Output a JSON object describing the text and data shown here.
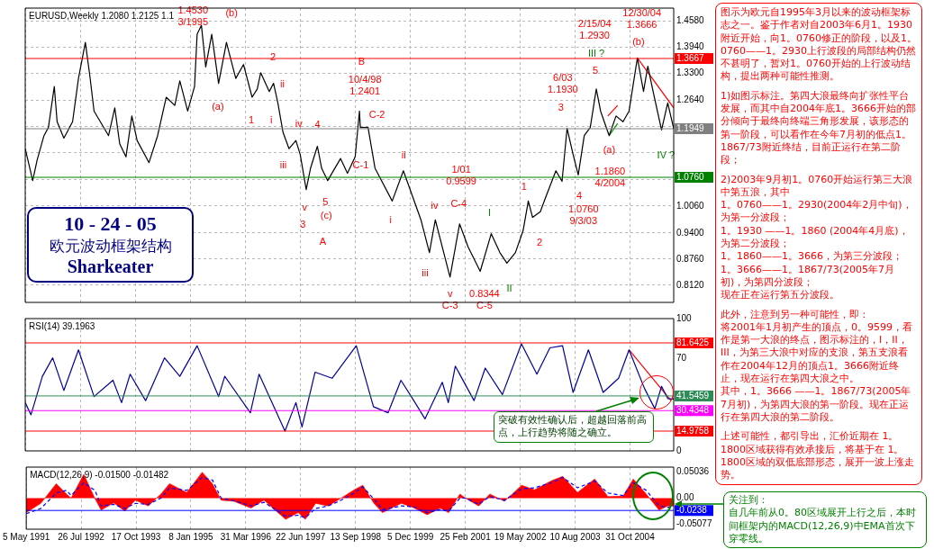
{
  "chart_data": [
    {
      "type": "line",
      "title": "EURUSD,Weekly 1.2080 1.2125 1.1",
      "xlim": [
        "1991-05-05",
        "2005-10-23"
      ],
      "ylim": [
        0.77,
        1.49
      ],
      "grid": true,
      "marker": "none",
      "tick_labels": "y",
      "xticks": [
        {
          "value": "1991-05-05",
          "label": null
        },
        {
          "value": "1992-07-26",
          "label": null
        },
        {
          "value": "1993-10-17",
          "label": null
        },
        {
          "value": "1995-01-08",
          "label": null
        },
        {
          "value": "1996-03-31",
          "label": null
        },
        {
          "value": "1997-06-22",
          "label": null
        },
        {
          "value": "1998-09-13",
          "label": null
        },
        {
          "value": "1999-12-05",
          "label": null
        },
        {
          "value": "2001-02-25",
          "label": null
        },
        {
          "value": "2002-05-19",
          "label": null
        },
        {
          "value": "2003-08-10",
          "label": null
        },
        {
          "value": "2004-10-31",
          "label": null
        }
      ],
      "yticks": [
        {
          "value": 1.458,
          "label": "1.4580"
        },
        {
          "value": 1.394,
          "label": "1.3940"
        },
        {
          "value": 1.33,
          "label": "1.3300"
        },
        {
          "value": 1.264,
          "label": "1.2640"
        },
        {
          "value": 1.2,
          "label": null
        },
        {
          "value": 1.136,
          "label": null
        },
        {
          "value": 1.07,
          "label": null
        },
        {
          "value": 1.006,
          "label": "1.0060"
        },
        {
          "value": 0.94,
          "label": "0.9400"
        },
        {
          "value": 0.876,
          "label": "0.8760"
        },
        {
          "value": 0.812,
          "label": "0.8120"
        }
      ],
      "series": [
        {
          "color": "#000000",
          "x": [
            "1991-05-05",
            "1991-07-05",
            "1991-08-10",
            "1991-10-05",
            "1991-11-10",
            "1991-12-28",
            "1992-01-20",
            "1992-03-15",
            "1992-05-25",
            "1992-07-12",
            "1992-09-06",
            "1992-10-12",
            "1992-11-16",
            "1993-01-18",
            "1993-03-14",
            "1993-05-04",
            "1993-06-13",
            "1993-08-03",
            "1993-09-20",
            "1993-11-02",
            "1994-02-07",
            "1994-04-18",
            "1994-06-27",
            "1994-09-05",
            "1994-10-16",
            "1994-12-19",
            "1995-02-13",
            "1995-03-06",
            "1995-04-10",
            "1995-05-15",
            "1995-07-03",
            "1995-08-28",
            "1995-10-31",
            "1996-01-15",
            "1996-03-18",
            "1996-05-27",
            "1996-07-08",
            "1996-08-05",
            "1996-10-14",
            "1996-11-18",
            "1996-12-23",
            "1997-02-03",
            "1997-03-24",
            "1997-05-19",
            "1997-06-23",
            "1997-08-11",
            "1997-09-15",
            "1997-11-10",
            "1997-12-15",
            "1998-02-02",
            "1998-05-18",
            "1998-07-13",
            "1998-09-14",
            "1998-10-19",
            "1998-10-26",
            "1998-12-28",
            "1999-02-23",
            "1999-07-13",
            "1999-10-12",
            "2000-03-03",
            "2000-05-11",
            "2000-06-28",
            "2000-10-26",
            "2001-01-12",
            "2001-03-22",
            "2001-06-29",
            "2001-09-27",
            "2001-12-06",
            "2002-02-02",
            "2002-04-12",
            "2002-06-14",
            "2002-07-26",
            "2002-08-30",
            "2002-11-01",
            "2002-12-13",
            "2003-03-08",
            "2003-04-27",
            "2003-06-07",
            "2003-07-26",
            "2003-09-06",
            "2003-10-25",
            "2003-12-13",
            "2004-01-31",
            "2004-03-06",
            "2004-05-15",
            "2004-07-10",
            "2004-09-05",
            "2004-10-24",
            "2004-12-31",
            "2005-02-19",
            "2005-03-26",
            "2005-05-08",
            "2005-07-16",
            "2005-09-04",
            "2005-10-23"
          ],
          "values": [
            1.146,
            1.068,
            1.118,
            1.178,
            1.198,
            1.298,
            1.212,
            1.172,
            1.212,
            1.318,
            1.406,
            1.326,
            1.238,
            1.206,
            1.178,
            1.246,
            1.158,
            1.126,
            1.226,
            1.166,
            1.112,
            1.178,
            1.272,
            1.252,
            1.312,
            1.238,
            1.298,
            1.426,
            1.448,
            1.346,
            1.426,
            1.306,
            1.406,
            1.318,
            1.352,
            1.272,
            1.292,
            1.332,
            1.286,
            1.306,
            1.258,
            1.186,
            1.146,
            1.166,
            1.132,
            1.046,
            1.098,
            1.152,
            1.098,
            1.068,
            1.122,
            1.086,
            1.126,
            1.238,
            1.198,
            1.198,
            1.098,
            1.018,
            1.092,
            0.972,
            0.892,
            0.972,
            0.832,
            0.962,
            0.906,
            0.846,
            0.938,
            0.892,
            0.866,
            0.892,
            0.946,
            1.018,
            0.978,
            0.992,
            1.026,
            1.092,
            1.066,
            1.196,
            1.132,
            1.082,
            1.178,
            1.198,
            1.292,
            1.238,
            1.178,
            1.226,
            1.212,
            1.238,
            1.368,
            1.286,
            1.348,
            1.286,
            1.192,
            1.258,
            1.195
          ]
        },
        {
          "type": "line",
          "color": "#ff0000",
          "x": [
            "2004-12-31",
            "2005-10-23"
          ],
          "values": [
            1.368,
            1.246
          ]
        },
        {
          "type": "line",
          "color": "#ff0000",
          "x": [
            "2004-05-04",
            "2004-07-23"
          ],
          "values": [
            1.226,
            1.252
          ]
        },
        {
          "type": "line",
          "color": "#00a000",
          "x": [
            "2004-05-15",
            "2004-07-23"
          ],
          "values": [
            1.178,
            1.208
          ]
        }
      ],
      "ref_lines": [
        {
          "axis": "y",
          "value": 1.3667,
          "label": "1.3667",
          "color": "#ff0000"
        },
        {
          "axis": "y",
          "value": 1.076,
          "label": "1.0760",
          "color": "#008000"
        },
        {
          "axis": "y",
          "value": 1.1949,
          "label": "1.1949",
          "color": "#808080"
        }
      ],
      "annotations": [
        "10 - 24 - 05",
        "欧元波动框架结构",
        "Sharkeater",
        "1.4530\n3/1995",
        "(b)",
        "2",
        "ii",
        "(a)",
        "1",
        "i",
        "iv",
        "4",
        "iii",
        "v",
        "3",
        "5",
        "(c)",
        "A",
        "B",
        "10/4/98\n1.2401",
        "C-2",
        "C-1",
        "ii",
        "i",
        "iii",
        "iv",
        "C-4",
        "1/01\n0.9599",
        "v",
        "C-3",
        "0.8344",
        "C-5",
        "I",
        "II",
        "1",
        "2",
        "6/03\n1.1930",
        "3",
        "4",
        "1.0760\n9/3/03",
        "5",
        "2/15/04\n1.2930",
        "III ?",
        "(a)",
        "1.1860\n4/2004",
        "12/30/04\n1.3666",
        "(b)",
        "IV ?"
      ]
    },
    {
      "type": "line",
      "title": "RSI(14) 39.1963",
      "xlim": [
        "1991-05-05",
        "2005-10-23"
      ],
      "ylim": [
        0,
        100
      ],
      "grid": "x",
      "marker": "none",
      "tick_labels": "y",
      "xticks": [
        {
          "value": "1991-05-05",
          "label": null
        },
        {
          "value": "1992-07-26",
          "label": null
        },
        {
          "value": "1993-10-17",
          "label": null
        },
        {
          "value": "1995-01-08",
          "label": null
        },
        {
          "value": "1996-03-31",
          "label": null
        },
        {
          "value": "1997-06-22",
          "label": null
        },
        {
          "value": "1998-09-13",
          "label": null
        },
        {
          "value": "1999-12-05",
          "label": null
        },
        {
          "value": "2001-02-25",
          "label": null
        },
        {
          "value": "2002-05-19",
          "label": null
        },
        {
          "value": "2003-08-10",
          "label": null
        },
        {
          "value": "2004-10-31",
          "label": null
        }
      ],
      "yticks": [
        0,
        70,
        100
      ],
      "series": [
        {
          "color": "#000099",
          "x": [
            "1991-05-05",
            "1991-06-21",
            "1991-09-22",
            "1991-12-15",
            "1992-03-15",
            "1992-07-12",
            "1992-11-16",
            "1993-04-19",
            "1993-06-28",
            "1993-09-06",
            "1994-01-10",
            "1994-06-13",
            "1994-10-16",
            "1995-03-06",
            "1995-08-28",
            "1995-10-17",
            "1996-05-13",
            "1996-07-23",
            "1997-02-19",
            "1997-05-19",
            "1997-07-08",
            "1997-10-22",
            "1998-03-10",
            "1998-09-23",
            "1999-02-10",
            "1999-06-09",
            "1999-09-22",
            "2000-01-05",
            "2000-04-05",
            "2000-08-24",
            "2000-10-12",
            "2000-12-08",
            "2001-05-10",
            "2001-08-09",
            "2001-12-27",
            "2002-05-31",
            "2002-10-04",
            "2003-01-18",
            "2003-05-01",
            "2003-07-26",
            "2003-11-28",
            "2004-03-27",
            "2004-07-31",
            "2004-10-24",
            "2005-02-27",
            "2005-05-22",
            "2005-07-16",
            "2005-09-04",
            "2005-10-23"
          ],
          "values": [
            36.5,
            27.3,
            56.4,
            70.3,
            45.7,
            76.4,
            41.1,
            53.4,
            36.5,
            58.0,
            38.0,
            70.3,
            56.4,
            79.5,
            41.1,
            56.4,
            28.8,
            58.0,
            15.0,
            36.5,
            18.1,
            59.5,
            54.9,
            79.5,
            33.4,
            28.8,
            53.4,
            38.0,
            24.2,
            51.9,
            36.5,
            64.1,
            38.0,
            62.6,
            42.6,
            81.0,
            58.0,
            77.9,
            79.5,
            44.2,
            76.4,
            44.2,
            54.9,
            76.4,
            47.2,
            31.9,
            48.8,
            39.6,
            39.2
          ]
        },
        {
          "type": "line",
          "color": "#ff0000",
          "x": [
            "2004-10-24",
            "2005-10-01"
          ],
          "values": [
            76.4,
            38.0
          ]
        }
      ],
      "ref_lines": [
        {
          "axis": "y",
          "value": 81.6425,
          "label": "81.6425",
          "color": "#ff0000"
        },
        {
          "axis": "y",
          "value": 41.5459,
          "label": "41.5459",
          "color": "#2e8b57"
        },
        {
          "axis": "y",
          "value": 30.4348,
          "label": "30.4348",
          "color": "#ff00ff"
        },
        {
          "axis": "y",
          "value": 14.9758,
          "label": "14.9758",
          "color": "#ff0000"
        }
      ],
      "annotations": [
        "突破有效性确认后，超越回落前高点，上行趋势将随之确立。"
      ]
    },
    {
      "type": "area",
      "title": "MACD(12,26,9) -0.01500 -0.01482",
      "xlim": [
        "1991-05-05",
        "2005-10-23"
      ],
      "ylim": [
        -0.06,
        0.06
      ],
      "grid": "x",
      "marker": "none",
      "xticks": [
        {
          "value": "1991-05-05",
          "label": "5 May 1991"
        },
        {
          "value": "1992-07-26",
          "label": "26 Jul 1992"
        },
        {
          "value": "1993-10-17",
          "label": "17 Oct 1993"
        },
        {
          "value": "1995-01-08",
          "label": "8 Jan 1995"
        },
        {
          "value": "1996-03-31",
          "label": "31 Mar 1996"
        },
        {
          "value": "1997-06-22",
          "label": "22 Jun 1997"
        },
        {
          "value": "1998-09-13",
          "label": "13 Sep 1998"
        },
        {
          "value": "1999-12-05",
          "label": "5 Dec 1999"
        },
        {
          "value": "2001-02-25",
          "label": "25 Feb 2001"
        },
        {
          "value": "2002-05-19",
          "label": "19 May 2002"
        },
        {
          "value": "2003-08-10",
          "label": "10 Aug 2003"
        },
        {
          "value": "2004-10-31",
          "label": "31 Oct 2004"
        }
      ],
      "yticks": [
        {
          "value": 0.05036,
          "label": "0.05036"
        },
        {
          "value": 0,
          "label": "0.00"
        },
        {
          "value": -0.05077,
          "label": "-0.05077"
        }
      ],
      "x": [
        "1991-05-05",
        "1991-09-01",
        "1992-01-05",
        "1992-03-29",
        "1992-05-05",
        "1992-08-17",
        "1992-11-16",
        "1993-01-05",
        "1993-04-19",
        "1993-07-18",
        "1993-10-12",
        "1994-01-25",
        "1994-05-08",
        "1994-07-18",
        "1994-12-05",
        "1995-04-10",
        "1995-07-03",
        "1995-09-12",
        "1995-12-25",
        "1996-05-13",
        "1996-08-27",
        "1997-02-19",
        "1997-06-03",
        "1997-07-30",
        "1997-10-22",
        "1998-02-02",
        "1998-05-18",
        "1998-09-02",
        "1998-11-11",
        "1999-02-10",
        "1999-04-21",
        "1999-09-22",
        "2000-01-05",
        "2000-04-20",
        "2000-08-03",
        "2000-10-12",
        "2001-01-12",
        "2001-03-03",
        "2001-06-15",
        "2001-09-13",
        "2002-01-11",
        "2002-05-31",
        "2002-09-13",
        "2003-02-01",
        "2003-05-01",
        "2003-08-30",
        "2004-01-17",
        "2004-05-04",
        "2004-09-05",
        "2004-11-27",
        "2005-03-13",
        "2005-06-25",
        "2005-09-04",
        "2005-10-23"
      ],
      "series": [
        {
          "color": "#ff0000",
          "values": [
            -0.028,
            -0.01,
            0.028,
            0.008,
            0,
            0.046,
            -0.001,
            -0.023,
            -0.009,
            -0.025,
            -0.004,
            -0.015,
            0.008,
            0.028,
            0.011,
            0.05,
            0.028,
            -0.004,
            -0.006,
            -0.019,
            -0.004,
            -0.041,
            -0.028,
            -0.041,
            -0.01,
            -0.015,
            0,
            0.016,
            0.025,
            -0.01,
            -0.028,
            -0.01,
            -0.019,
            -0.032,
            -0.019,
            -0.028,
            0.008,
            -0.001,
            -0.015,
            0.008,
            -0.006,
            0.025,
            0.016,
            0.034,
            0.042,
            0.011,
            0.037,
            0.003,
            0.004,
            0.037,
            0.008,
            -0.023,
            -0.015,
            -0.015
          ]
        },
        {
          "type": "line",
          "line_style": "dashed",
          "color": "#0000ff",
          "values": [
            -0.03,
            -0.02,
            0.01,
            0.015,
            0.005,
            0.03,
            0.015,
            -0.015,
            -0.012,
            -0.02,
            -0.01,
            -0.012,
            0.0,
            0.02,
            0.015,
            0.04,
            0.035,
            0.0,
            -0.005,
            -0.015,
            -0.008,
            -0.035,
            -0.033,
            -0.038,
            -0.02,
            -0.015,
            -0.004,
            0.01,
            0.022,
            -0.002,
            -0.022,
            -0.015,
            -0.017,
            -0.028,
            -0.022,
            -0.025,
            0.0,
            0.0,
            -0.012,
            0.003,
            -0.004,
            0.018,
            0.02,
            0.03,
            0.04,
            0.02,
            0.033,
            0.01,
            0.005,
            0.03,
            0.015,
            -0.015,
            -0.018,
            -0.015
          ]
        }
      ],
      "ref_lines": [
        {
          "axis": "y",
          "value": -0.0238,
          "label": "-0.0238",
          "color": "#0000ff"
        }
      ],
      "annotations": [
        "关注到：",
        "自几年前从0。80区域展开上行之后，本时间框架内的MACD(12,26,9)中EMA首次下穿零线。"
      ]
    },
    {
      "type": "other",
      "annotations": [
        "图示为欧元自1995年3月以来的波动框架标志之一。鉴于作者对自2003年6月1。1930附近开始，向1。0760修正的阶段，以及1。0760——1。2930上行波段的局部结构仍然不甚明了，暂对1。0760开始的上行波动结构，提出两种可能性推测。",
        "1)如图示标注。第四大浪最终向扩张性平台发展，而其中自2004年底1。3666开始的部分倾向于最终向终端三角形发展，该形态的第一阶段，可以看作在今年7月初的低点1。1867/73附近终结，目前正运行在第二阶段；",
        "2)2003年9月初1。0760开始运行第三大浪中第五浪，其中",
        "1。0760——1。2930(2004年2月中旬)，为第一分波段；",
        "1。1930 ——1。1860 (2004年4月底)，为第二分波段；",
        "1。1860——1。3666，为第三分波段；",
        "1。3666——1。1867/73(2005年7月初)，为第四分波段；",
        "现在正在运行第五分波段。",
        "此外，注意到另一种可能性，即：",
        "将2001年1月初产生的顶点，0。9599，看作是第一大浪的终点，图示标注的，I，II，III，为第三大浪中对应的支浪，第五支浪看作在2004年12月的顶点1。3666附近终止，现在运行在第四大浪之中。",
        "其中，1。3666 ——1。1867/73(2005年7月初)，为第四大浪的第一阶段。现在正运行在第四大浪的第二阶段。",
        "上述可能性，都引导出，汇价近期在 1。1800区域获得有效承接后，将基于在 1。1800区域的双低底部形态，展开一波上涨走势。"
      ]
    }
  ]
}
